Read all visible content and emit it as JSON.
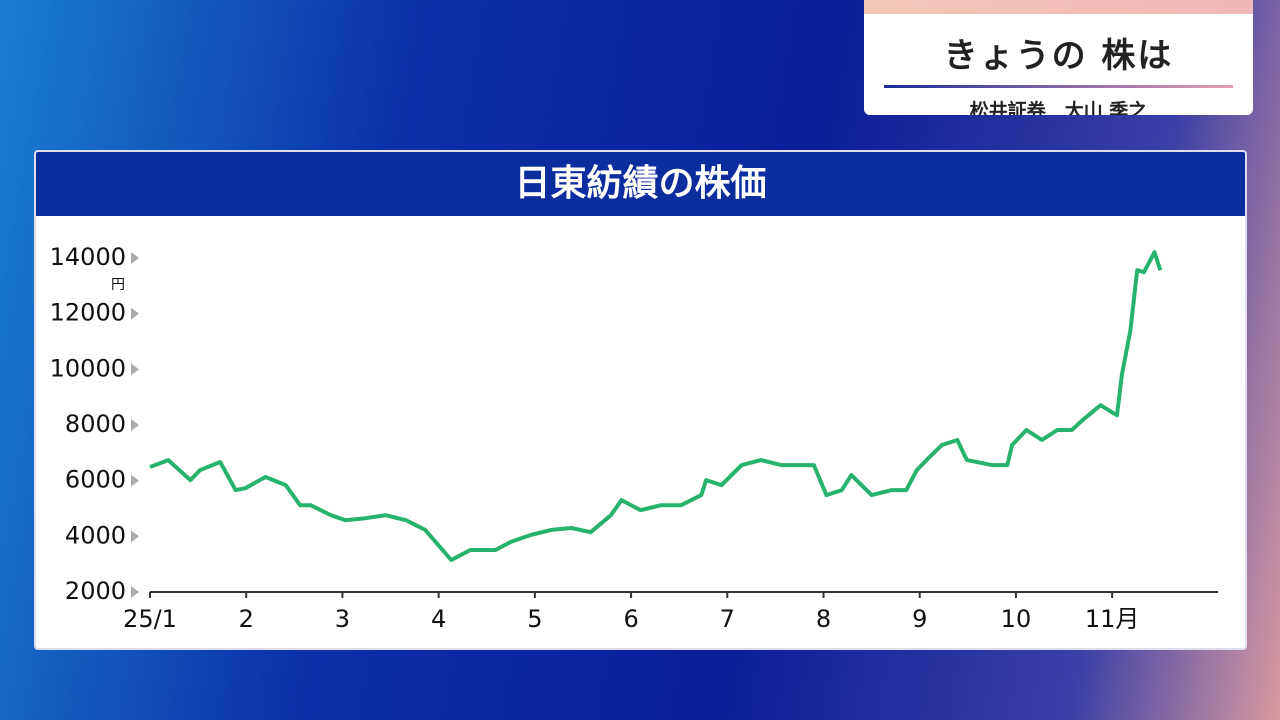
{
  "header": {
    "title": "きょうの 株は",
    "subtitle": "松井証券　大山 季之"
  },
  "chart_data": {
    "type": "line",
    "title": "日東紡績の株価",
    "y_unit": "円",
    "color": "#27b36d",
    "x": [
      1.0,
      1.19,
      1.42,
      1.52,
      1.73,
      1.89,
      1.99,
      2.2,
      2.41,
      2.56,
      2.67,
      2.88,
      3.03,
      3.24,
      3.45,
      3.66,
      3.86,
      4.13,
      4.33,
      4.59,
      4.75,
      4.96,
      5.17,
      5.38,
      5.58,
      5.79,
      5.9,
      6.1,
      6.31,
      6.52,
      6.73,
      6.78,
      6.94,
      7.15,
      7.35,
      7.56,
      7.77,
      7.9,
      8.03,
      8.19,
      8.29,
      8.5,
      8.71,
      8.86,
      8.97,
      9.07,
      9.23,
      9.39,
      9.49,
      9.75,
      9.91,
      9.96,
      10.11,
      10.27,
      10.43,
      10.58,
      10.69,
      10.88,
      11.05,
      11.1,
      11.19,
      11.26,
      11.33,
      11.44,
      11.5
    ],
    "values": [
      6490,
      6740,
      6020,
      6380,
      6670,
      5660,
      5730,
      6130,
      5840,
      5120,
      5120,
      4760,
      4580,
      4650,
      4760,
      4580,
      4230,
      3150,
      3510,
      3510,
      3800,
      4050,
      4230,
      4300,
      4150,
      4760,
      5300,
      4940,
      5120,
      5120,
      5480,
      6020,
      5840,
      6560,
      6740,
      6560,
      6560,
      6560,
      5480,
      5660,
      6200,
      5480,
      5660,
      5660,
      6380,
      6740,
      7280,
      7460,
      6740,
      6560,
      6560,
      7280,
      7820,
      7460,
      7820,
      7820,
      8170,
      8710,
      8350,
      9790,
      11400,
      13560,
      13490,
      14210,
      13560
    ],
    "xlim": [
      1,
      12.1
    ],
    "xticks": [
      {
        "value": 1,
        "label": "25/1"
      },
      2,
      3,
      4,
      5,
      6,
      7,
      8,
      9,
      10,
      {
        "value": 11,
        "label": "11月"
      }
    ],
    "ylim": [
      2000,
      14000
    ],
    "yticks": [
      2000,
      4000,
      6000,
      8000,
      10000,
      12000,
      14000
    ]
  }
}
